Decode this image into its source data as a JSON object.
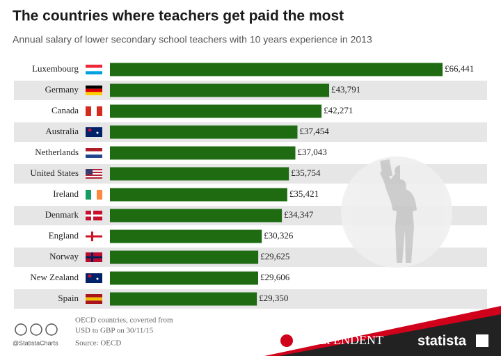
{
  "chart_data": {
    "type": "bar",
    "orientation": "horizontal",
    "title": "The countries where teachers get paid the most",
    "subtitle": "Annual salary of lower secondary school teachers with 10 years experience in 2013",
    "categories": [
      "Luxembourg",
      "Germany",
      "Canada",
      "Australia",
      "Netherlands",
      "United States",
      "Ireland",
      "Denmark",
      "England",
      "Norway",
      "New Zealand",
      "Spain"
    ],
    "values": [
      66441,
      43791,
      42271,
      37454,
      37043,
      35754,
      35421,
      34347,
      30326,
      29625,
      29606,
      29350
    ],
    "value_labels": [
      "£66,441",
      "£43,791",
      "£42,271",
      "£37,454",
      "£37,043",
      "£35,754",
      "£35,421",
      "£34,347",
      "£30,326",
      "£29,625",
      "£29,606",
      "£29,350"
    ],
    "color": "#1e6b12"
  },
  "footer": {
    "handle": "@StatistaCharts",
    "note": [
      "OECD countries, coverted from",
      "USD to GBP on 30/11/15"
    ],
    "source": "Source: OECD",
    "publisher": "INDEPENDENT",
    "brand": "statista"
  }
}
